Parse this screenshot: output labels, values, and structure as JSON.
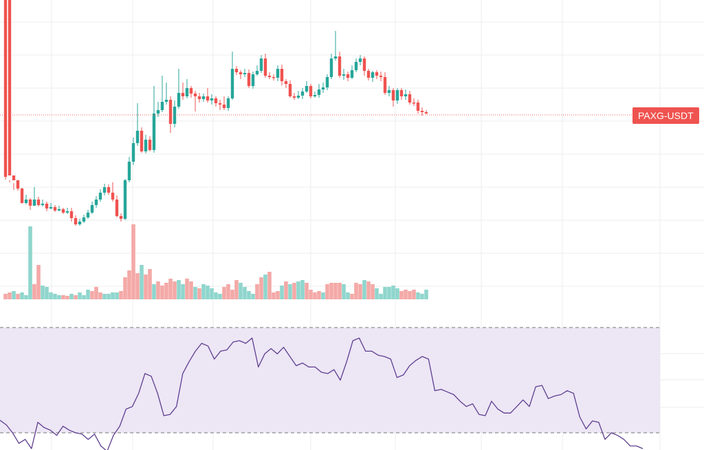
{
  "symbol_label": "PAXG-USDT",
  "colors": {
    "up": "#26a69a",
    "down": "#ef5350",
    "up_volume": "#8fd6cd",
    "down_volume": "#f4a9a7",
    "rsi_line": "#5e3d8f",
    "rsi_band": "#ece6f5",
    "grid": "#eeeeee",
    "last_price_line": "#ef5350"
  },
  "chart_data": [
    {
      "type": "candlestick",
      "title": "",
      "y_axis": "hidden",
      "x_axis": "hidden",
      "grid": true,
      "last_price_line": true,
      "candles": [
        [
          0,
          257,
          255,
          261,
          0
        ],
        [
          0,
          255,
          262,
          265,
          0
        ],
        [
          255,
          262,
          266,
          276
        ],
        [
          262,
          274,
          271,
          277
        ],
        [
          274,
          295,
          273,
          296
        ],
        [
          295,
          290,
          283,
          297
        ],
        [
          290,
          299,
          288,
          305
        ],
        [
          299,
          290,
          272,
          293
        ],
        [
          290,
          298,
          286,
          300
        ],
        [
          298,
          296,
          290,
          300
        ],
        [
          296,
          303,
          293,
          307
        ],
        [
          303,
          301,
          295,
          304
        ],
        [
          301,
          306,
          298,
          308
        ],
        [
          306,
          304,
          299,
          307
        ],
        [
          304,
          309,
          302,
          311
        ],
        [
          309,
          307,
          302,
          311
        ],
        [
          307,
          317,
          302,
          322
        ],
        [
          317,
          326,
          313,
          328
        ],
        [
          326,
          322,
          318,
          328
        ],
        [
          322,
          316,
          312,
          324
        ],
        [
          316,
          309,
          305,
          318
        ],
        [
          309,
          298,
          293,
          311
        ],
        [
          298,
          290,
          285,
          302
        ],
        [
          290,
          280,
          275,
          293
        ],
        [
          280,
          272,
          267,
          284
        ],
        [
          272,
          280,
          268,
          283
        ],
        [
          280,
          290,
          265,
          293
        ],
        [
          290,
          314,
          284,
          316
        ],
        [
          314,
          318,
          310,
          322
        ],
        [
          318,
          262,
          260,
          320
        ],
        [
          262,
          235,
          228,
          265
        ],
        [
          235,
          208,
          200,
          240
        ],
        [
          208,
          190,
          150,
          212
        ],
        [
          190,
          220,
          185,
          222
        ],
        [
          220,
          203,
          196,
          223
        ],
        [
          203,
          218,
          198,
          220
        ],
        [
          218,
          165,
          125,
          222
        ],
        [
          165,
          160,
          148,
          170
        ],
        [
          160,
          148,
          110,
          163
        ],
        [
          148,
          145,
          120,
          152
        ],
        [
          145,
          180,
          140,
          193
        ],
        [
          180,
          155,
          146,
          185
        ],
        [
          155,
          135,
          100,
          158
        ],
        [
          135,
          140,
          120,
          145
        ],
        [
          140,
          128,
          115,
          143
        ],
        [
          128,
          136,
          125,
          142
        ],
        [
          136,
          140,
          132,
          162
        ],
        [
          140,
          144,
          135,
          149
        ],
        [
          144,
          140,
          136,
          148
        ],
        [
          140,
          146,
          128,
          149
        ],
        [
          146,
          143,
          137,
          152
        ],
        [
          143,
          150,
          140,
          155
        ],
        [
          150,
          152,
          145,
          160
        ],
        [
          152,
          157,
          140,
          160
        ],
        [
          157,
          143,
          140,
          161
        ],
        [
          143,
          100,
          75,
          145
        ],
        [
          100,
          105,
          96,
          109
        ],
        [
          105,
          108,
          102,
          115
        ],
        [
          108,
          106,
          100,
          112
        ],
        [
          106,
          125,
          101,
          128
        ],
        [
          125,
          108,
          104,
          129
        ],
        [
          108,
          103,
          95,
          110
        ],
        [
          103,
          85,
          80,
          106
        ],
        [
          85,
          110,
          78,
          113
        ],
        [
          110,
          112,
          105,
          115
        ],
        [
          112,
          113,
          108,
          117
        ],
        [
          113,
          100,
          95,
          118
        ],
        [
          100,
          118,
          94,
          124
        ],
        [
          118,
          122,
          115,
          128
        ],
        [
          122,
          140,
          117,
          142
        ],
        [
          140,
          142,
          135,
          145
        ],
        [
          142,
          139,
          132,
          144
        ],
        [
          139,
          133,
          128,
          144
        ],
        [
          133,
          125,
          118,
          135
        ],
        [
          125,
          140,
          122,
          143
        ],
        [
          140,
          138,
          133,
          142
        ],
        [
          138,
          130,
          122,
          142
        ],
        [
          130,
          127,
          120,
          135
        ],
        [
          127,
          112,
          108,
          131
        ],
        [
          112,
          85,
          78,
          115
        ],
        [
          85,
          82,
          45,
          88
        ],
        [
          82,
          110,
          75,
          113
        ],
        [
          110,
          108,
          100,
          116
        ],
        [
          108,
          113,
          104,
          118
        ],
        [
          113,
          102,
          95,
          115
        ],
        [
          102,
          90,
          85,
          105
        ],
        [
          90,
          85,
          80,
          95
        ],
        [
          85,
          103,
          82,
          110
        ],
        [
          103,
          113,
          100,
          117
        ],
        [
          113,
          105,
          103,
          119
        ],
        [
          105,
          110,
          102,
          115
        ],
        [
          110,
          112,
          104,
          118
        ],
        [
          112,
          135,
          105,
          138
        ],
        [
          135,
          131,
          125,
          140
        ],
        [
          131,
          146,
          128,
          155
        ],
        [
          146,
          131,
          128,
          151
        ],
        [
          131,
          140,
          128,
          145
        ],
        [
          140,
          137,
          130,
          145
        ],
        [
          137,
          149,
          132,
          152
        ],
        [
          149,
          149,
          143,
          154
        ],
        [
          149,
          161,
          145,
          165
        ],
        [
          161,
          163,
          156,
          168
        ],
        [
          163,
          165,
          160,
          166
        ]
      ],
      "volume": [
        [
          8,
          0
        ],
        [
          10,
          0
        ],
        [
          12,
          1
        ],
        [
          8,
          0
        ],
        [
          10,
          1
        ],
        [
          6,
          1
        ],
        [
          106,
          1
        ],
        [
          22,
          0
        ],
        [
          50,
          0
        ],
        [
          20,
          1
        ],
        [
          18,
          1
        ],
        [
          10,
          1
        ],
        [
          8,
          1
        ],
        [
          6,
          1
        ],
        [
          6,
          0
        ],
        [
          5,
          0
        ],
        [
          8,
          1
        ],
        [
          6,
          0
        ],
        [
          10,
          1
        ],
        [
          6,
          1
        ],
        [
          14,
          1
        ],
        [
          12,
          0
        ],
        [
          18,
          0
        ],
        [
          10,
          0
        ],
        [
          8,
          1
        ],
        [
          8,
          1
        ],
        [
          10,
          1
        ],
        [
          10,
          1
        ],
        [
          12,
          0
        ],
        [
          32,
          0
        ],
        [
          42,
          0
        ],
        [
          109,
          0
        ],
        [
          38,
          0
        ],
        [
          50,
          1
        ],
        [
          36,
          0
        ],
        [
          44,
          0
        ],
        [
          22,
          1
        ],
        [
          26,
          0
        ],
        [
          20,
          0
        ],
        [
          24,
          0
        ],
        [
          30,
          0
        ],
        [
          26,
          0
        ],
        [
          28,
          1
        ],
        [
          22,
          1
        ],
        [
          30,
          0
        ],
        [
          26,
          0
        ],
        [
          18,
          1
        ],
        [
          16,
          0
        ],
        [
          22,
          1
        ],
        [
          20,
          1
        ],
        [
          16,
          1
        ],
        [
          10,
          1
        ],
        [
          8,
          1
        ],
        [
          18,
          0
        ],
        [
          22,
          0
        ],
        [
          14,
          0
        ],
        [
          28,
          0
        ],
        [
          24,
          1
        ],
        [
          18,
          1
        ],
        [
          12,
          1
        ],
        [
          8,
          1
        ],
        [
          22,
          0
        ],
        [
          32,
          0
        ],
        [
          36,
          1
        ],
        [
          40,
          0
        ],
        [
          10,
          0
        ],
        [
          12,
          0
        ],
        [
          20,
          1
        ],
        [
          26,
          0
        ],
        [
          22,
          1
        ],
        [
          24,
          0
        ],
        [
          26,
          1
        ],
        [
          28,
          1
        ],
        [
          24,
          0
        ],
        [
          14,
          0
        ],
        [
          10,
          0
        ],
        [
          12,
          0
        ],
        [
          10,
          1
        ],
        [
          22,
          0
        ],
        [
          24,
          0
        ],
        [
          24,
          0
        ],
        [
          24,
          0
        ],
        [
          22,
          1
        ],
        [
          10,
          1
        ],
        [
          8,
          0
        ],
        [
          24,
          0
        ],
        [
          22,
          0
        ],
        [
          28,
          1
        ],
        [
          26,
          0
        ],
        [
          22,
          0
        ],
        [
          16,
          1
        ],
        [
          8,
          1
        ],
        [
          18,
          1
        ],
        [
          18,
          1
        ],
        [
          20,
          1
        ],
        [
          16,
          1
        ],
        [
          12,
          0
        ],
        [
          14,
          0
        ],
        [
          12,
          0
        ],
        [
          14,
          0
        ],
        [
          10,
          1
        ],
        [
          8,
          1
        ],
        [
          14,
          1
        ]
      ]
    },
    {
      "type": "line",
      "title": "",
      "series_role": "oscillator",
      "y_range": [
        0,
        100
      ],
      "band": [
        30,
        70
      ],
      "values": [
        39.5,
        36,
        30,
        22,
        25,
        18,
        38,
        34,
        32,
        28,
        35,
        32,
        30,
        29,
        25,
        29,
        20,
        16,
        28,
        35,
        48,
        50,
        60,
        75,
        73,
        60,
        43,
        44,
        50,
        75,
        84,
        92,
        98,
        96,
        86,
        92,
        93,
        99,
        100,
        98,
        102,
        80,
        90,
        94,
        90,
        95,
        88,
        81,
        83,
        80,
        80,
        76,
        75,
        78,
        70,
        84,
        100,
        102,
        92,
        92,
        89,
        88,
        86,
        72,
        74,
        81,
        85,
        88,
        86,
        62,
        63,
        61,
        59,
        54,
        50,
        52,
        44,
        43,
        54,
        48,
        45,
        45,
        50,
        55,
        50,
        65,
        66,
        56,
        58,
        59,
        62,
        60,
        42,
        33,
        39,
        38,
        25,
        30,
        28,
        25,
        20,
        20,
        18
      ]
    }
  ]
}
